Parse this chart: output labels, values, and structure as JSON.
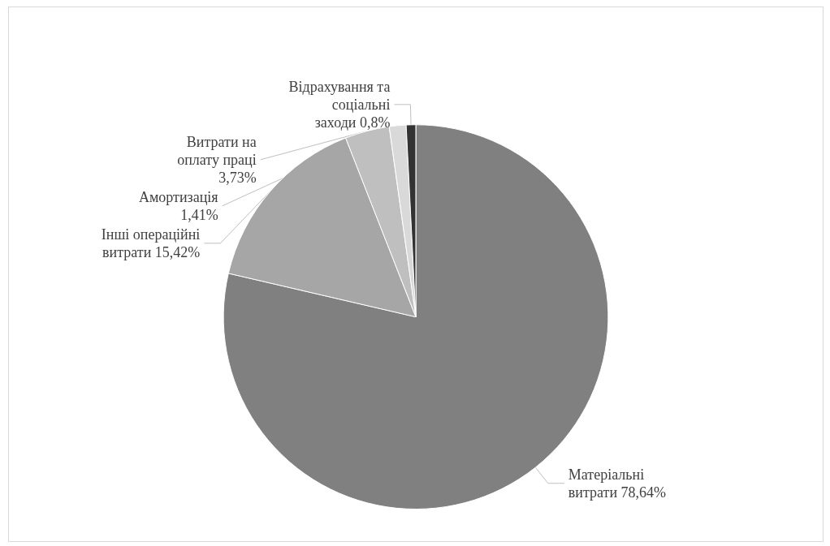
{
  "chart_data": {
    "type": "pie",
    "categories": [
      "Матеріальні витрати",
      "Інші операційні витрати",
      "Витрати на оплату праці",
      "Амортизація",
      "Відрахування та соціальні заходи"
    ],
    "values": [
      78.64,
      15.42,
      3.73,
      1.41,
      0.8
    ],
    "colors": [
      "#808080",
      "#a6a6a6",
      "#bfbfbf",
      "#d9d9d9",
      "#333333"
    ],
    "value_labels": [
      "78,64%",
      "15,42%",
      "3,73%",
      "1,41%",
      "0,8%"
    ],
    "legend": false
  }
}
